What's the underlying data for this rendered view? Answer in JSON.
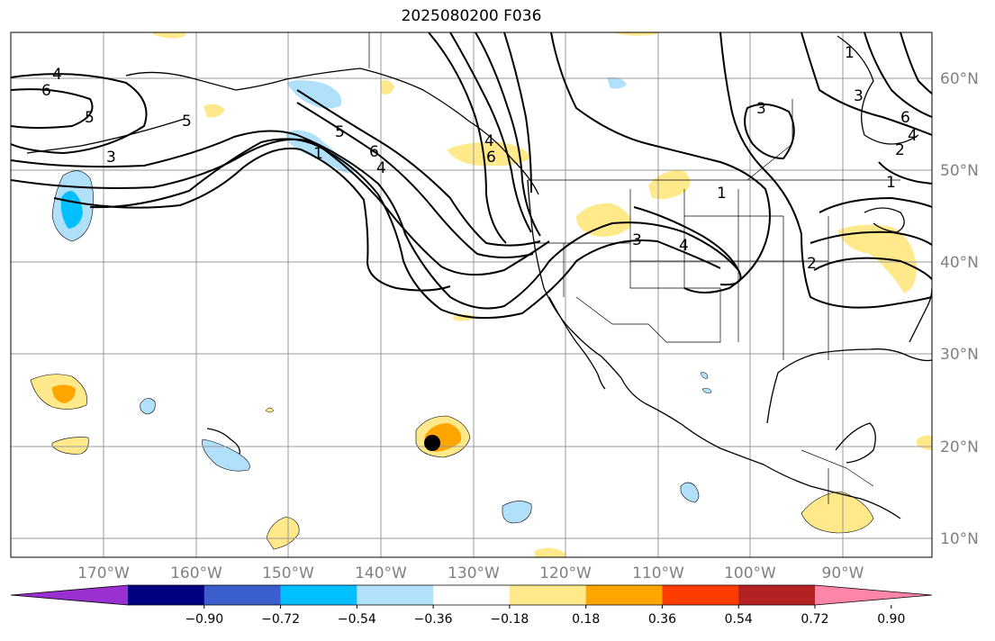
{
  "title": "2025080200 F036",
  "lat_ticks": [
    "60°N",
    "50°N",
    "40°N",
    "30°N",
    "20°N",
    "10°N"
  ],
  "lon_ticks": [
    "170°W",
    "160°W",
    "150°W",
    "140°W",
    "130°W",
    "120°W",
    "110°W",
    "100°W",
    "90°W"
  ],
  "colorbar": {
    "labels": [
      "−0.90",
      "−0.72",
      "−0.54",
      "−0.36",
      "−0.18",
      "0.18",
      "0.36",
      "0.54",
      "0.72",
      "0.90"
    ],
    "colors": [
      "#9b30d0",
      "#000080",
      "#3a5fcd",
      "#00bfff",
      "#b0e0fa",
      "#ffffff",
      "#ffe98a",
      "#ffa500",
      "#ff3c00",
      "#b22222",
      "#ff85a8"
    ]
  },
  "contour_labels": [
    "4",
    "6",
    "5",
    "3",
    "5",
    "6",
    "4",
    "1",
    "4",
    "6",
    "5",
    "3",
    "4",
    "1",
    "3",
    "1",
    "3",
    "6",
    "4",
    "2",
    "1",
    "2"
  ],
  "colors": {
    "neg_light": "#b0e0fa",
    "neg_mid": "#00bfff",
    "pos_light": "#ffe98a",
    "pos_mid": "#ffa500",
    "grid": "#999999"
  },
  "marker": "black-dot-storm-center"
}
